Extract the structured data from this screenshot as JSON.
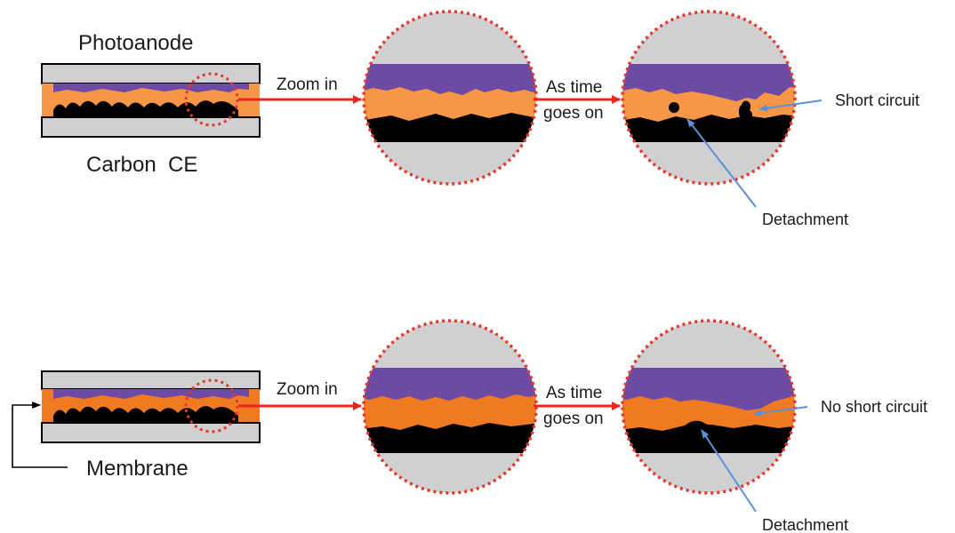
{
  "top": {
    "photoanode_label": "Photoanode",
    "carbon_label": "Carbon  CE",
    "zoom_label": "Zoom in",
    "time_line1": "As time",
    "time_line2": "goes on",
    "short_circuit_label": "Short circuit",
    "detachment_label": "Detachment"
  },
  "bottom": {
    "membrane_label": "Membrane",
    "zoom_label": "Zoom in",
    "time_line1": "As time",
    "time_line2": "goes on",
    "no_short_circuit_label": "No short circuit",
    "detachment_label": "Detachment"
  },
  "colors": {
    "glass": "#d0d0d2",
    "dye": "#6d4aa3",
    "electrolyte": "#f79646",
    "electrolyte_bottom": "#f07a22",
    "carbon": "#000000",
    "arrow_red": "#e8271f",
    "circle_red": "#e03a2e",
    "pointer_blue": "#5b8fd6"
  }
}
